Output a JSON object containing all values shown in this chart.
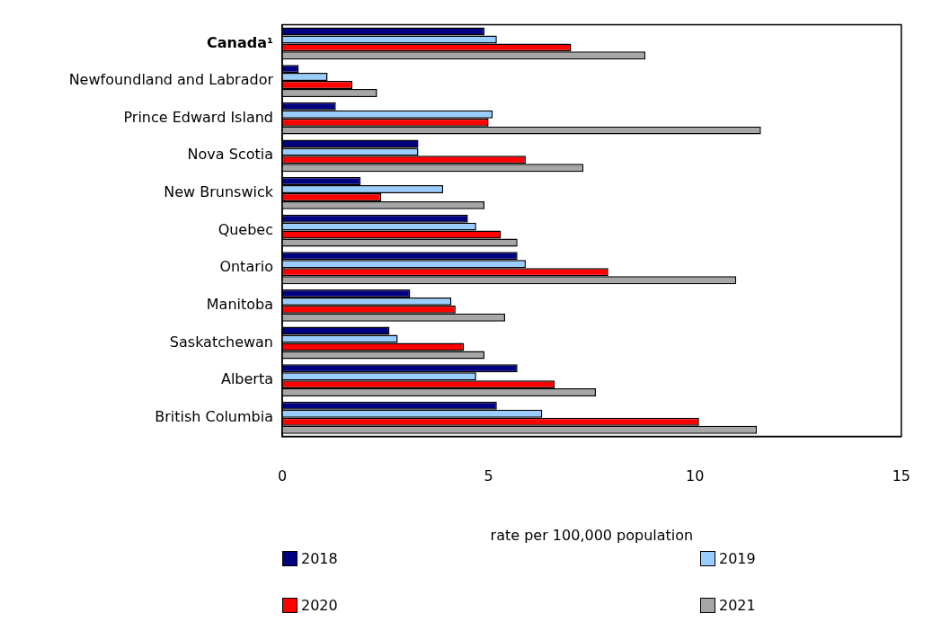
{
  "chart_data": {
    "type": "bar",
    "orientation": "horizontal",
    "xlabel": "rate per 100,000 population",
    "categories": [
      "Canada¹",
      "Newfoundland and Labrador",
      "Prince Edward Island",
      "Nova Scotia",
      "New Brunswick",
      "Quebec",
      "Ontario",
      "Manitoba",
      "Saskatchewan",
      "Alberta",
      "British Columbia"
    ],
    "series": [
      {
        "name": "2018",
        "color": "#000080",
        "values": [
          4.9,
          0.4,
          1.3,
          3.3,
          1.9,
          4.5,
          5.7,
          3.1,
          2.6,
          5.7,
          5.2
        ]
      },
      {
        "name": "2019",
        "color": "#99ccff",
        "values": [
          5.2,
          1.1,
          5.1,
          3.3,
          3.9,
          4.7,
          5.9,
          4.1,
          2.8,
          4.7,
          6.3
        ]
      },
      {
        "name": "2020",
        "color": "#ff0000",
        "values": [
          7.0,
          1.7,
          5.0,
          5.9,
          2.4,
          5.3,
          7.9,
          4.2,
          4.4,
          6.6,
          10.1
        ]
      },
      {
        "name": "2021",
        "color": "#a6a6a6",
        "values": [
          8.8,
          2.3,
          11.6,
          7.3,
          4.9,
          5.7,
          11.0,
          5.4,
          4.9,
          7.6,
          11.5
        ]
      }
    ],
    "xlim": [
      0,
      15
    ],
    "xticks": [
      0,
      5,
      10,
      15
    ],
    "grid": false,
    "legend": "bottom"
  }
}
